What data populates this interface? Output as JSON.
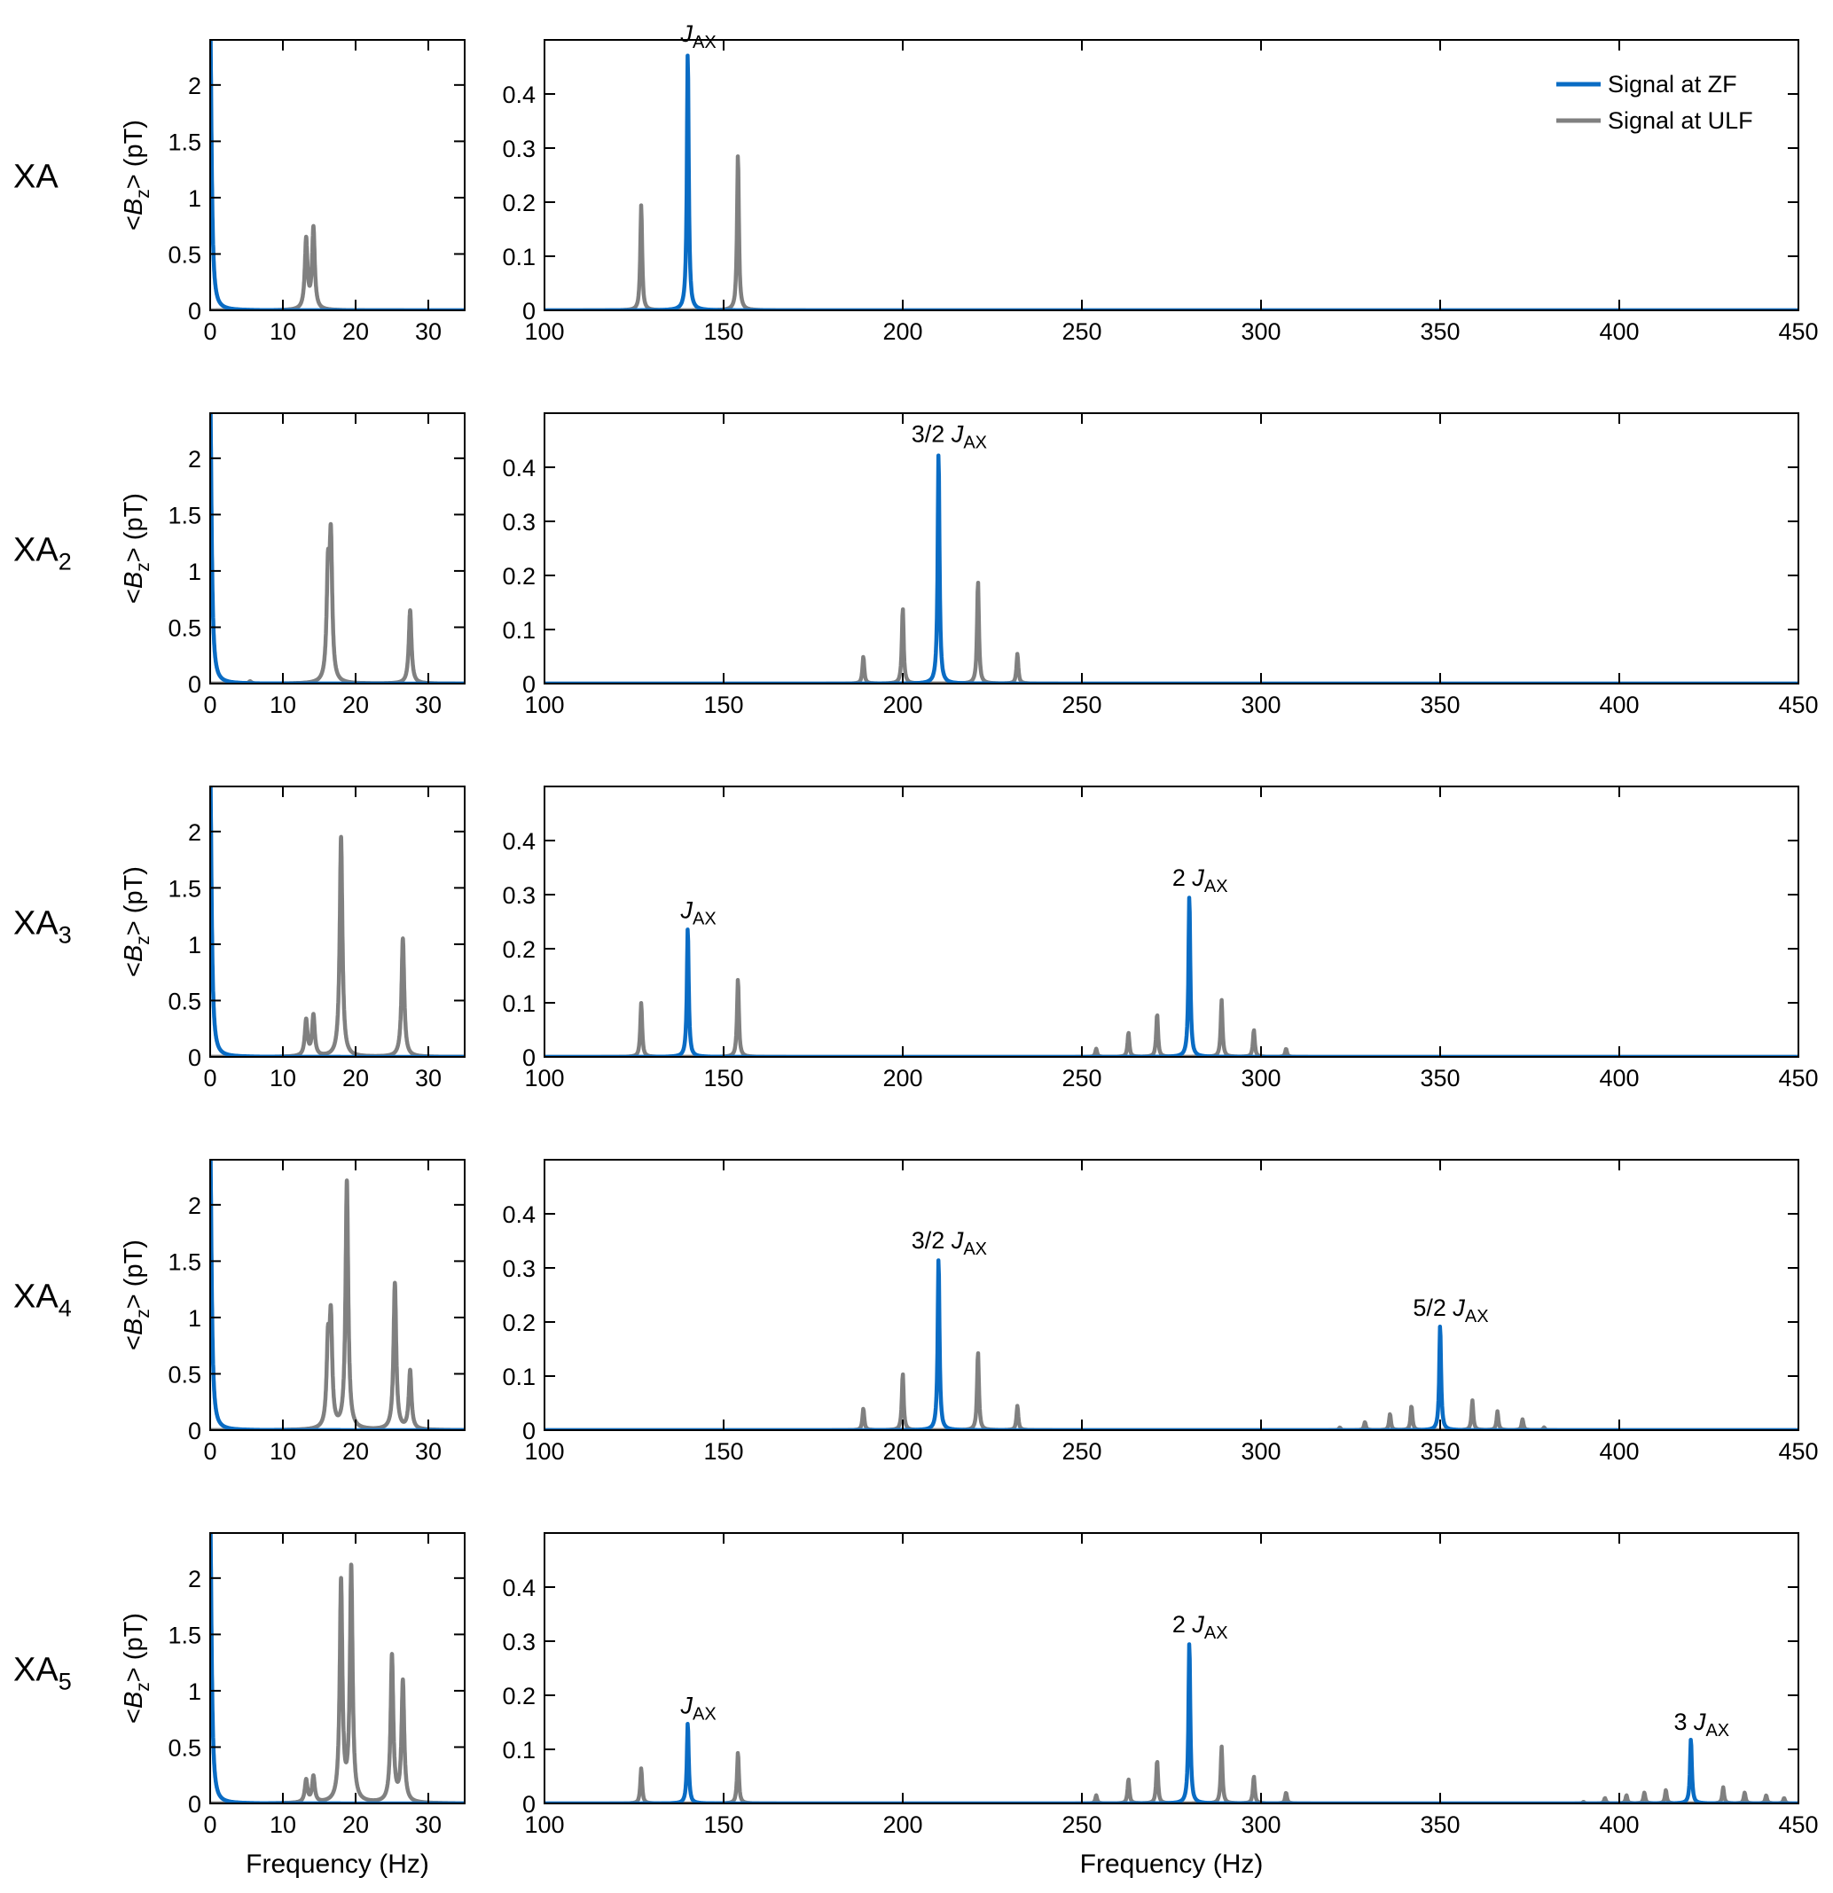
{
  "chart_data": {
    "type": "line",
    "colors": {
      "zf": "#0a6cc4",
      "ulf": "#808080"
    },
    "legend": {
      "placement": "top-right",
      "entries": [
        {
          "series": "zf",
          "label": "Signal at ZF"
        },
        {
          "series": "ulf",
          "label": "Signal at ULF"
        }
      ]
    },
    "y_label": {
      "prefix": "<",
      "symbol": "B",
      "subscript": "z",
      "suffix": "> (pT)"
    },
    "x_label": "Frequency (Hz)",
    "left_axes": {
      "xlim": [
        0,
        35
      ],
      "xticks": [
        "0",
        "10",
        "20",
        "30"
      ],
      "ylim": [
        0,
        2.4
      ],
      "yticks": [
        "0",
        "0.5",
        "1",
        "1.5",
        "2"
      ]
    },
    "right_axes": {
      "xlim": [
        100,
        450
      ],
      "xticks": [
        "100",
        "150",
        "200",
        "250",
        "300",
        "350",
        "400",
        "450"
      ],
      "ylim": [
        0,
        0.5
      ],
      "yticks": [
        "0",
        "0.1",
        "0.2",
        "0.3",
        "0.4"
      ]
    },
    "rows": [
      {
        "label": "XA",
        "label_sub": "",
        "left": {
          "zf": [
            [
              0,
              2.6
            ]
          ],
          "ulf": [
            [
              13.2,
              0.62
            ],
            [
              14.2,
              0.72
            ]
          ]
        },
        "right": {
          "zf": [
            [
              140,
              0.48
            ]
          ],
          "ulf": [
            [
              127,
              0.195
            ],
            [
              154,
              0.29
            ]
          ]
        },
        "annotations": [
          {
            "x": 140,
            "y": 0.48,
            "prefix": "",
            "symbol": "J",
            "subscript": "AX"
          }
        ]
      },
      {
        "label": "XA",
        "label_sub": "2",
        "left": {
          "zf": [
            [
              0,
              2.6
            ]
          ],
          "ulf": [
            [
              5.5,
              0.02
            ],
            [
              16.2,
              0.9
            ],
            [
              16.6,
              1.2
            ],
            [
              27.5,
              0.65
            ]
          ]
        },
        "right": {
          "zf": [
            [
              210,
              0.43
            ]
          ],
          "ulf": [
            [
              189,
              0.05
            ],
            [
              200,
              0.14
            ],
            [
              221,
              0.19
            ],
            [
              232,
              0.055
            ]
          ]
        },
        "annotations": [
          {
            "x": 210,
            "y": 0.43,
            "prefix": "3/2 ",
            "symbol": "J",
            "subscript": "AX"
          }
        ]
      },
      {
        "label": "XA",
        "label_sub": "3",
        "left": {
          "zf": [
            [
              0,
              2.6
            ]
          ],
          "ulf": [
            [
              13.2,
              0.32
            ],
            [
              14.2,
              0.36
            ],
            [
              18,
              1.95
            ],
            [
              26.5,
              1.05
            ]
          ]
        },
        "right": {
          "zf": [
            [
              140,
              0.24
            ],
            [
              280,
              0.3
            ]
          ],
          "ulf": [
            [
              127,
              0.1
            ],
            [
              154,
              0.145
            ],
            [
              254,
              0.015
            ],
            [
              263,
              0.045
            ],
            [
              271,
              0.08
            ],
            [
              289,
              0.105
            ],
            [
              298,
              0.05
            ],
            [
              307,
              0.015
            ]
          ]
        },
        "annotations": [
          {
            "x": 140,
            "y": 0.24,
            "prefix": "",
            "symbol": "J",
            "subscript": "AX"
          },
          {
            "x": 280,
            "y": 0.3,
            "prefix": "2 ",
            "symbol": "J",
            "subscript": "AX"
          }
        ]
      },
      {
        "label": "XA",
        "label_sub": "4",
        "left": {
          "zf": [
            [
              0,
              2.6
            ]
          ],
          "ulf": [
            [
              16.2,
              0.7
            ],
            [
              16.6,
              0.92
            ],
            [
              18.8,
              2.2
            ],
            [
              25.4,
              1.3
            ],
            [
              27.5,
              0.52
            ]
          ]
        },
        "right": {
          "zf": [
            [
              210,
              0.32
            ],
            [
              350,
              0.195
            ]
          ],
          "ulf": [
            [
              189,
              0.04
            ],
            [
              200,
              0.105
            ],
            [
              221,
              0.145
            ],
            [
              232,
              0.045
            ],
            [
              322,
              0.005
            ],
            [
              329,
              0.015
            ],
            [
              336,
              0.03
            ],
            [
              342,
              0.045
            ],
            [
              359,
              0.055
            ],
            [
              366,
              0.035
            ],
            [
              373,
              0.02
            ],
            [
              379,
              0.005
            ]
          ]
        },
        "annotations": [
          {
            "x": 210,
            "y": 0.32,
            "prefix": "3/2 ",
            "symbol": "J",
            "subscript": "AX"
          },
          {
            "x": 350,
            "y": 0.195,
            "prefix": "5/2 ",
            "symbol": "J",
            "subscript": "AX"
          }
        ]
      },
      {
        "label": "XA",
        "label_sub": "5",
        "left": {
          "zf": [
            [
              0,
              2.6
            ]
          ],
          "ulf": [
            [
              13.2,
              0.2
            ],
            [
              14.2,
              0.23
            ],
            [
              18,
              1.95
            ],
            [
              19.4,
              2.07
            ],
            [
              25,
              1.3
            ],
            [
              26.5,
              1.07
            ]
          ]
        },
        "right": {
          "zf": [
            [
              140,
              0.15
            ],
            [
              280,
              0.3
            ],
            [
              420,
              0.12
            ]
          ],
          "ulf": [
            [
              127,
              0.065
            ],
            [
              154,
              0.095
            ],
            [
              254,
              0.015
            ],
            [
              263,
              0.045
            ],
            [
              271,
              0.08
            ],
            [
              289,
              0.105
            ],
            [
              298,
              0.05
            ],
            [
              307,
              0.02
            ],
            [
              390,
              0.003
            ],
            [
              396,
              0.01
            ],
            [
              402,
              0.015
            ],
            [
              407,
              0.02
            ],
            [
              413,
              0.025
            ],
            [
              429,
              0.03
            ],
            [
              435,
              0.02
            ],
            [
              441,
              0.015
            ],
            [
              446,
              0.01
            ]
          ]
        },
        "annotations": [
          {
            "x": 140,
            "y": 0.15,
            "prefix": "",
            "symbol": "J",
            "subscript": "AX"
          },
          {
            "x": 280,
            "y": 0.3,
            "prefix": "2 ",
            "symbol": "J",
            "subscript": "AX"
          },
          {
            "x": 420,
            "y": 0.12,
            "prefix": "3 ",
            "symbol": "J",
            "subscript": "AX"
          }
        ]
      }
    ]
  }
}
